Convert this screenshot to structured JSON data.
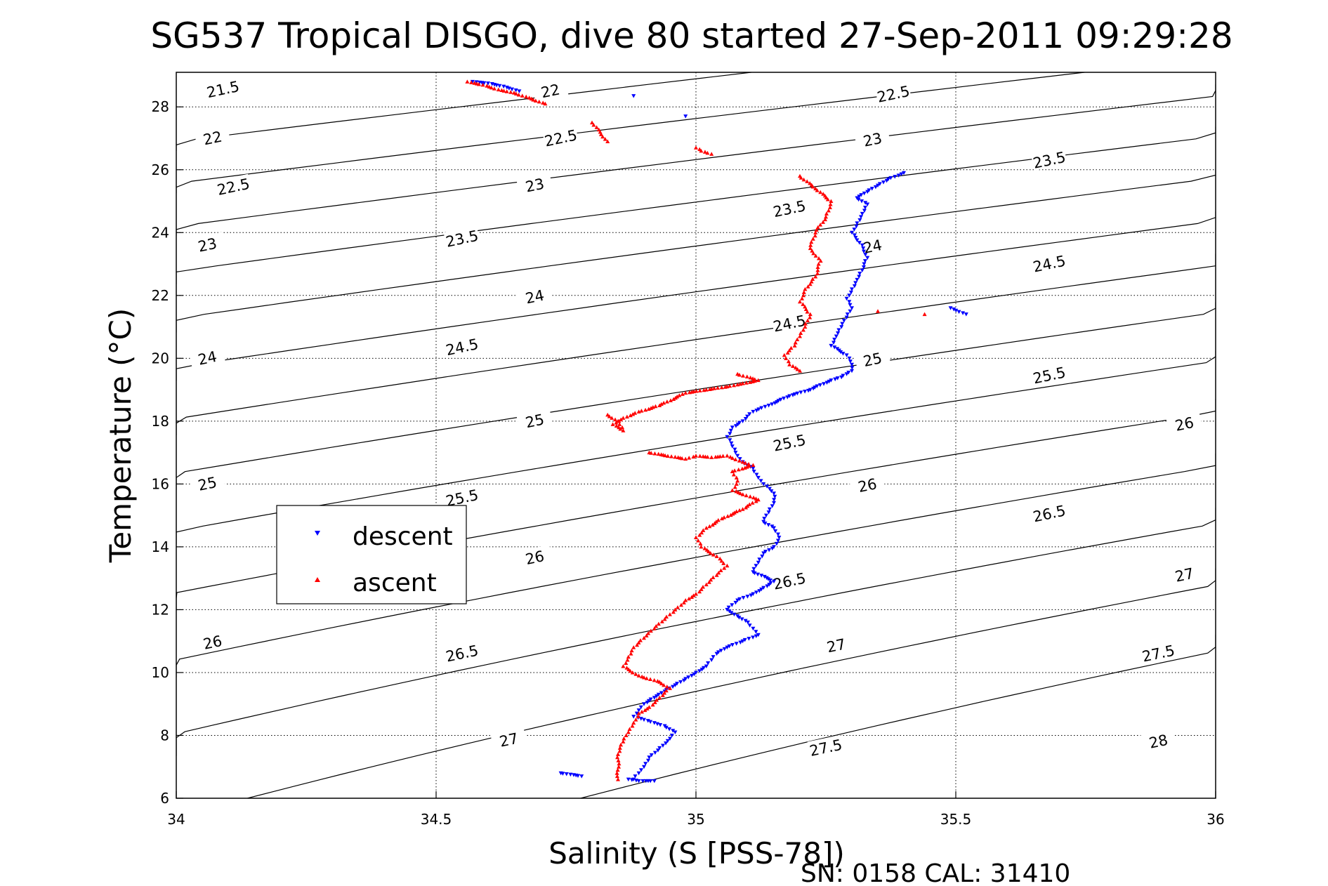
{
  "chart_data": {
    "type": "scatter",
    "title": "SG537 Tropical DISGO, dive 80 started 27-Sep-2011 09:29:28",
    "xlabel": "Salinity (S [PSS-78])",
    "ylabel": "Temperature (°C)",
    "footer": "SN: 0158  CAL: 31410",
    "xlim": [
      34,
      36
    ],
    "ylim": [
      6,
      29.1
    ],
    "xticks": [
      34,
      34.5,
      35,
      35.5,
      36
    ],
    "xtick_labels": [
      "34",
      "34.5",
      "35",
      "35.5",
      "36"
    ],
    "yticks": [
      6,
      8,
      10,
      12,
      14,
      16,
      18,
      20,
      22,
      24,
      26,
      28
    ],
    "ytick_labels": [
      "6",
      "8",
      "10",
      "12",
      "14",
      "16",
      "18",
      "20",
      "22",
      "24",
      "26",
      "28"
    ],
    "grid": true,
    "legend": {
      "placement": "inside-left",
      "entries": [
        {
          "label": "descent",
          "color": "#0000ff",
          "marker": "triangle-down"
        },
        {
          "label": "ascent",
          "color": "#ff0000",
          "marker": "triangle-up"
        }
      ]
    },
    "isopycnals": {
      "color": "#000000",
      "levels": [
        21.5,
        22,
        22.5,
        23,
        23.5,
        24,
        24.5,
        25,
        25.5,
        26,
        26.5,
        27,
        27.5,
        28
      ],
      "inline_labels": [
        {
          "text": "21.5",
          "x": 34.09,
          "y": 28.55
        },
        {
          "text": "22",
          "x": 34.72,
          "y": 28.5
        },
        {
          "text": "22.5",
          "x": 35.38,
          "y": 28.4
        },
        {
          "text": "22",
          "x": 34.07,
          "y": 27.0
        },
        {
          "text": "22.5",
          "x": 34.74,
          "y": 27.0
        },
        {
          "text": "23",
          "x": 35.34,
          "y": 26.95
        },
        {
          "text": "22.5",
          "x": 34.11,
          "y": 25.45
        },
        {
          "text": "23",
          "x": 34.69,
          "y": 25.5
        },
        {
          "text": "23.5",
          "x": 35.68,
          "y": 26.3
        },
        {
          "text": "23",
          "x": 34.06,
          "y": 23.6
        },
        {
          "text": "23.5",
          "x": 34.55,
          "y": 23.8
        },
        {
          "text": "23.5",
          "x": 35.18,
          "y": 24.75
        },
        {
          "text": "24",
          "x": 35.34,
          "y": 23.55
        },
        {
          "text": "24",
          "x": 34.69,
          "y": 21.95
        },
        {
          "text": "24.5",
          "x": 35.68,
          "y": 23.0
        },
        {
          "text": "24",
          "x": 34.06,
          "y": 20.0
        },
        {
          "text": "24.5",
          "x": 34.55,
          "y": 20.35
        },
        {
          "text": "24.5",
          "x": 35.18,
          "y": 21.1
        },
        {
          "text": "25",
          "x": 35.34,
          "y": 19.95
        },
        {
          "text": "25",
          "x": 34.69,
          "y": 18.0
        },
        {
          "text": "25.5",
          "x": 35.68,
          "y": 19.45
        },
        {
          "text": "25",
          "x": 34.06,
          "y": 16.0
        },
        {
          "text": "25.5",
          "x": 35.18,
          "y": 17.3
        },
        {
          "text": "26",
          "x": 35.94,
          "y": 17.9
        },
        {
          "text": "25.5",
          "x": 34.55,
          "y": 15.55
        },
        {
          "text": "26",
          "x": 35.33,
          "y": 15.95
        },
        {
          "text": "26",
          "x": 34.69,
          "y": 13.65
        },
        {
          "text": "26.5",
          "x": 35.68,
          "y": 15.05
        },
        {
          "text": "26.5",
          "x": 35.18,
          "y": 12.9
        },
        {
          "text": "27",
          "x": 35.94,
          "y": 13.1
        },
        {
          "text": "26",
          "x": 34.07,
          "y": 10.95
        },
        {
          "text": "26.5",
          "x": 34.55,
          "y": 10.6
        },
        {
          "text": "27",
          "x": 35.27,
          "y": 10.85
        },
        {
          "text": "27.5",
          "x": 35.89,
          "y": 10.6
        },
        {
          "text": "27",
          "x": 34.64,
          "y": 7.85
        },
        {
          "text": "27.5",
          "x": 35.25,
          "y": 7.6
        },
        {
          "text": "28",
          "x": 35.89,
          "y": 7.8
        }
      ]
    },
    "series": [
      {
        "name": "descent",
        "color": "#0000ff",
        "marker": "triangle-down",
        "x": [
          34.57,
          34.6,
          34.63,
          34.66,
          34.88,
          34.98,
          35.4,
          35.37,
          35.35,
          35.33,
          35.31,
          35.33,
          35.32,
          35.31,
          35.3,
          35.32,
          35.33,
          35.32,
          35.31,
          35.3,
          35.29,
          35.3,
          35.29,
          35.28,
          35.27,
          35.26,
          35.29,
          35.3,
          35.3,
          35.29,
          35.28,
          35.26,
          35.22,
          35.18,
          35.14,
          35.11,
          35.09,
          35.07,
          35.06,
          35.07,
          35.08,
          35.09,
          35.11,
          35.12,
          35.13,
          35.15,
          35.15,
          35.14,
          35.13,
          35.15,
          35.16,
          35.15,
          35.13,
          35.12,
          35.11,
          35.15,
          35.13,
          35.11,
          35.08,
          35.06,
          35.08,
          35.1,
          35.11,
          35.12,
          35.09,
          35.06,
          35.04,
          35.03,
          35.02,
          35.0,
          34.98,
          34.96,
          34.94,
          34.92,
          34.9,
          34.89,
          34.88,
          34.9,
          34.92,
          34.94,
          34.96,
          34.95,
          34.93,
          34.91,
          34.9,
          34.89,
          34.88,
          34.87,
          34.89,
          34.92,
          35.49,
          35.52,
          34.74,
          34.78
        ],
        "y": [
          28.8,
          28.75,
          28.65,
          28.5,
          28.35,
          27.7,
          25.9,
          25.7,
          25.5,
          25.3,
          25.1,
          24.9,
          24.6,
          24.3,
          24.0,
          23.6,
          23.2,
          22.8,
          22.5,
          22.2,
          21.9,
          21.6,
          21.3,
          21.0,
          20.7,
          20.4,
          20.1,
          19.8,
          19.6,
          19.5,
          19.4,
          19.3,
          19.0,
          18.8,
          18.5,
          18.3,
          18.0,
          17.8,
          17.5,
          17.2,
          16.9,
          16.7,
          16.5,
          16.2,
          16.0,
          15.7,
          15.4,
          15.1,
          14.8,
          14.6,
          14.3,
          14.0,
          13.8,
          13.5,
          13.2,
          12.9,
          12.7,
          12.5,
          12.3,
          12.0,
          11.8,
          11.6,
          11.4,
          11.2,
          11.0,
          10.8,
          10.6,
          10.4,
          10.2,
          10.0,
          9.8,
          9.6,
          9.4,
          9.2,
          9.0,
          8.8,
          8.6,
          8.5,
          8.4,
          8.3,
          8.1,
          7.9,
          7.6,
          7.3,
          7.0,
          6.8,
          6.6,
          6.6,
          6.55,
          6.55,
          21.6,
          21.4,
          6.8,
          6.7
        ]
      },
      {
        "name": "ascent",
        "color": "#ff0000",
        "marker": "triangle-up",
        "x": [
          34.56,
          34.59,
          34.62,
          34.65,
          34.71,
          34.8,
          34.83,
          35.0,
          35.01,
          35.03,
          35.2,
          35.23,
          35.26,
          35.25,
          35.23,
          35.22,
          35.24,
          35.23,
          35.21,
          35.2,
          35.22,
          35.21,
          35.2,
          35.19,
          35.17,
          35.18,
          35.2,
          35.35,
          35.44,
          35.08,
          35.12,
          35.09,
          35.06,
          35.02,
          34.98,
          34.93,
          34.89,
          34.86,
          34.84,
          34.86,
          34.85,
          34.83,
          34.91,
          34.98,
          35.0,
          35.03,
          35.06,
          35.09,
          35.11,
          35.07,
          35.08,
          35.07,
          35.12,
          35.09,
          35.05,
          35.02,
          35.0,
          35.01,
          35.04,
          35.06,
          35.04,
          35.02,
          35.0,
          34.98,
          34.96,
          34.94,
          34.92,
          34.9,
          34.88,
          34.87,
          34.86,
          34.89,
          34.93,
          34.95,
          34.93,
          34.91,
          34.89,
          34.88,
          34.87,
          34.86,
          34.85,
          34.85
        ],
        "y": [
          28.8,
          28.7,
          28.55,
          28.45,
          28.1,
          27.5,
          26.9,
          26.7,
          26.6,
          26.5,
          25.8,
          25.4,
          25.0,
          24.5,
          24.0,
          23.5,
          23.1,
          22.6,
          22.2,
          21.8,
          21.4,
          21.0,
          20.7,
          20.4,
          20.1,
          19.8,
          19.6,
          21.5,
          21.4,
          19.5,
          19.3,
          19.2,
          19.1,
          19.0,
          18.9,
          18.5,
          18.3,
          18.1,
          17.9,
          17.7,
          18.0,
          18.2,
          17.0,
          16.8,
          16.9,
          16.85,
          16.9,
          16.7,
          16.6,
          16.4,
          16.1,
          15.8,
          15.5,
          15.2,
          14.9,
          14.6,
          14.3,
          14.0,
          13.7,
          13.4,
          13.1,
          12.8,
          12.5,
          12.3,
          12.0,
          11.7,
          11.4,
          11.1,
          10.8,
          10.5,
          10.2,
          9.9,
          9.7,
          9.5,
          9.2,
          8.9,
          8.7,
          8.4,
          8.1,
          7.8,
          7.4,
          6.6
        ]
      }
    ]
  }
}
